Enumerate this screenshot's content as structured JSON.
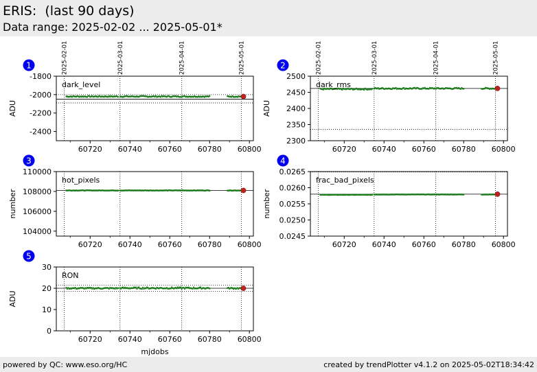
{
  "header": {
    "title": "ERIS:  (last 90 days)",
    "subtitle": "Data range: 2025-02-02 ... 2025-05-01*"
  },
  "footer": {
    "left": "powered by QC: www.eso.org/HC",
    "right": "created by trendPlotter v4.1.2 on 2025-05-02T18:34:42"
  },
  "colors": {
    "data": "#1a7a1a",
    "latest": "#c0231f",
    "badge": "#0000ee"
  },
  "chart_data": [
    {
      "type": "scatter",
      "badge": "1",
      "title": "dark_level",
      "ylabel": "ADU",
      "xlabel": "",
      "xlim": [
        60703,
        60802
      ],
      "ylim": [
        -2500,
        -1800
      ],
      "yticks": [
        "-1800",
        "-2000",
        "-2200",
        "-2400"
      ],
      "ytick_values": [
        -1800,
        -2000,
        -2200,
        -2400
      ],
      "xticks": [
        "60720",
        "60740",
        "60760",
        "60780",
        "60800"
      ],
      "xtick_values": [
        60720,
        60740,
        60760,
        60780,
        60800
      ],
      "date_labels": [
        "2025-02-01",
        "2025-03-01",
        "2025-04-01",
        "2025-05-01"
      ],
      "date_values": [
        60707,
        60735,
        60766,
        60796
      ],
      "ref_lines": [
        -2000,
        -2050,
        -2090
      ],
      "ref_styles": [
        "dotted",
        "solid",
        "dotted"
      ],
      "series": [
        {
          "start": 60708,
          "end": 60734,
          "step": 0.5,
          "value": -2020,
          "noise": 6
        },
        {
          "start": 60735,
          "end": 60780,
          "step": 0.5,
          "value": -2020,
          "noise": 6
        },
        {
          "start": 60789,
          "end": 60796,
          "step": 0.5,
          "value": -2020,
          "noise": 6
        }
      ],
      "latest": {
        "x": 60797,
        "y": -2020
      }
    },
    {
      "type": "scatter",
      "badge": "2",
      "title": "dark_rms",
      "ylabel": "ADU",
      "xlabel": "",
      "xlim": [
        60703,
        60802
      ],
      "ylim": [
        2300,
        2500
      ],
      "yticks": [
        "2500",
        "2450",
        "2400",
        "2350",
        "2300"
      ],
      "ytick_values": [
        2500,
        2450,
        2400,
        2350,
        2300
      ],
      "xticks": [
        "60720",
        "60740",
        "60760",
        "60780",
        "60800"
      ],
      "xtick_values": [
        60720,
        60740,
        60760,
        60780,
        60800
      ],
      "date_labels": [
        "2025-02-01",
        "2025-03-01",
        "2025-04-01",
        "2025-05-01"
      ],
      "date_values": [
        60707,
        60735,
        60766,
        60796
      ],
      "ref_lines": [
        2462,
        2335
      ],
      "ref_styles": [
        "solid",
        "dotted"
      ],
      "series": [
        {
          "start": 60708,
          "end": 60734,
          "step": 0.5,
          "value": 2460,
          "noise": 2
        },
        {
          "start": 60735,
          "end": 60780,
          "step": 0.5,
          "value": 2462,
          "noise": 2
        },
        {
          "start": 60789,
          "end": 60796,
          "step": 0.5,
          "value": 2462,
          "noise": 2
        }
      ],
      "latest": {
        "x": 60797,
        "y": 2462
      }
    },
    {
      "type": "scatter",
      "badge": "3",
      "title": "hot_pixels",
      "ylabel": "number",
      "xlabel": "",
      "xlim": [
        60703,
        60802
      ],
      "ylim": [
        103500,
        110000
      ],
      "yticks": [
        "110000",
        "108000",
        "106000",
        "104000"
      ],
      "ytick_values": [
        110000,
        108000,
        106000,
        104000
      ],
      "xticks": [
        "60720",
        "60740",
        "60760",
        "60780",
        "60800"
      ],
      "xtick_values": [
        60720,
        60740,
        60760,
        60780,
        60800
      ],
      "date_labels": [],
      "date_values": [
        60707,
        60735,
        60766,
        60796
      ],
      "ref_lines": [
        108100
      ],
      "ref_styles": [
        "solid"
      ],
      "series": [
        {
          "start": 60708,
          "end": 60734,
          "step": 0.5,
          "value": 108100,
          "noise": 20
        },
        {
          "start": 60735,
          "end": 60780,
          "step": 0.5,
          "value": 108100,
          "noise": 20
        },
        {
          "start": 60789,
          "end": 60796,
          "step": 0.5,
          "value": 108100,
          "noise": 20
        }
      ],
      "latest": {
        "x": 60797,
        "y": 108100
      }
    },
    {
      "type": "scatter",
      "badge": "4",
      "title": "frac_bad_pixels",
      "ylabel": "number",
      "xlabel": "",
      "xlim": [
        60703,
        60802
      ],
      "ylim": [
        0.0245,
        0.0265
      ],
      "yticks": [
        "0.0265",
        "0.0260",
        "0.0255",
        "0.0250",
        "0.0245"
      ],
      "ytick_values": [
        0.0265,
        0.026,
        0.0255,
        0.025,
        0.0245
      ],
      "xticks": [
        "60720",
        "60740",
        "60760",
        "60780",
        "60800"
      ],
      "xtick_values": [
        60720,
        60740,
        60760,
        60780,
        60800
      ],
      "date_labels": [],
      "date_values": [
        60707,
        60735,
        60766,
        60796
      ],
      "ref_lines": [
        0.0258,
        0.02649
      ],
      "ref_styles": [
        "solid",
        "dotted"
      ],
      "series": [
        {
          "start": 60708,
          "end": 60734,
          "step": 0.5,
          "value": 0.02578,
          "noise": 4e-06
        },
        {
          "start": 60735,
          "end": 60780,
          "step": 0.5,
          "value": 0.02579,
          "noise": 4e-06
        },
        {
          "start": 60789,
          "end": 60796,
          "step": 0.5,
          "value": 0.02579,
          "noise": 4e-06
        }
      ],
      "latest": {
        "x": 60797,
        "y": 0.0258
      }
    },
    {
      "type": "scatter",
      "badge": "5",
      "title": "RON",
      "ylabel": "ADU",
      "xlabel": "mjdobs",
      "xlim": [
        60703,
        60802
      ],
      "ylim": [
        0,
        30
      ],
      "yticks": [
        "30",
        "20",
        "10",
        "0"
      ],
      "ytick_values": [
        30,
        20,
        10,
        0
      ],
      "xticks": [
        "60720",
        "60740",
        "60760",
        "60780",
        "60800"
      ],
      "xtick_values": [
        60720,
        60740,
        60760,
        60780,
        60800
      ],
      "date_labels": [],
      "date_values": [
        60707,
        60735,
        60766,
        60796
      ],
      "ref_lines": [
        21.5,
        20,
        18.5
      ],
      "ref_styles": [
        "dotted",
        "solid",
        "dotted"
      ],
      "series": [
        {
          "start": 60708,
          "end": 60734,
          "step": 0.5,
          "value": 20,
          "noise": 0.3
        },
        {
          "start": 60735,
          "end": 60780,
          "step": 0.5,
          "value": 20.1,
          "noise": 0.35
        },
        {
          "start": 60789,
          "end": 60796,
          "step": 0.5,
          "value": 20,
          "noise": 0.3
        }
      ],
      "latest": {
        "x": 60797,
        "y": 20
      }
    }
  ]
}
